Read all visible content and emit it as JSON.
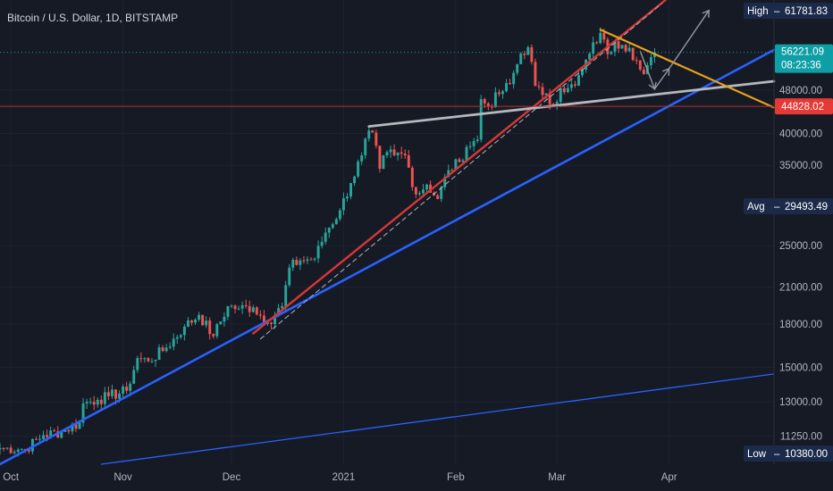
{
  "chart_data": {
    "type": "candlestick",
    "title": "Bitcoin / U.S. Dollar, 1D, BITSTAMP",
    "y_scale": "log",
    "ylim": [
      10000,
      70000
    ],
    "x_range": [
      "2020-09-28",
      "2021-04-30"
    ],
    "y_ticks": [
      11250,
      13000,
      15000,
      18000,
      21000,
      25000,
      35000,
      40000,
      48000
    ],
    "x_ticks": [
      {
        "date": "2020-10-01",
        "label": "Oct"
      },
      {
        "date": "2020-11-01",
        "label": "Nov"
      },
      {
        "date": "2020-12-01",
        "label": "Dec"
      },
      {
        "date": "2021-01-01",
        "label": "2021"
      },
      {
        "date": "2021-02-01",
        "label": "Feb"
      },
      {
        "date": "2021-03-01",
        "label": "Mar"
      },
      {
        "date": "2021-04-01",
        "label": "Apr"
      }
    ],
    "price_badges": {
      "last": {
        "value": "56221.09",
        "countdown": "08:23:36",
        "price": 56221.09
      },
      "high": {
        "label": "High",
        "value": "61781.83",
        "price": 61781.83
      },
      "avg": {
        "label": "Avg",
        "value": "29493.49",
        "price": 29493.49
      },
      "low": {
        "label": "Low",
        "value": "10380.00",
        "price": 10380
      },
      "line": {
        "value": "44828.02",
        "price": 44828.02
      }
    },
    "colors": {
      "up": "#26a69a",
      "down": "#ef5350",
      "background": "#161a25",
      "last_price": "#0e9ea5",
      "resistance_line": "#d93636",
      "blue_line": "#2962ff",
      "yellow_line": "#e5a21c",
      "gray_line": "#b6b8be"
    },
    "close_path": [
      [
        "2020-09-28",
        10700
      ],
      [
        "2020-10-05",
        10650
      ],
      [
        "2020-10-10",
        11300
      ],
      [
        "2020-10-15",
        11450
      ],
      [
        "2020-10-20",
        11900
      ],
      [
        "2020-10-21",
        12900
      ],
      [
        "2020-10-25",
        13100
      ],
      [
        "2020-10-28",
        13300
      ],
      [
        "2020-11-02",
        13600
      ],
      [
        "2020-11-05",
        15600
      ],
      [
        "2020-11-08",
        15400
      ],
      [
        "2020-11-13",
        16300
      ],
      [
        "2020-11-18",
        17800
      ],
      [
        "2020-11-22",
        18700
      ],
      [
        "2020-11-26",
        17100
      ],
      [
        "2020-11-30",
        19400
      ],
      [
        "2020-12-03",
        19200
      ],
      [
        "2020-12-07",
        19300
      ],
      [
        "2020-12-11",
        18100
      ],
      [
        "2020-12-15",
        19400
      ],
      [
        "2020-12-17",
        22800
      ],
      [
        "2020-12-20",
        23500
      ],
      [
        "2020-12-24",
        23700
      ],
      [
        "2020-12-27",
        26400
      ],
      [
        "2020-12-31",
        29000
      ],
      [
        "2021-01-03",
        32500
      ],
      [
        "2021-01-06",
        36500
      ],
      [
        "2021-01-08",
        40500
      ],
      [
        "2021-01-10",
        38000
      ],
      [
        "2021-01-11",
        34500
      ],
      [
        "2021-01-13",
        37000
      ],
      [
        "2021-01-15",
        36500
      ],
      [
        "2021-01-18",
        36500
      ],
      [
        "2021-01-21",
        31000
      ],
      [
        "2021-01-24",
        32300
      ],
      [
        "2021-01-27",
        30400
      ],
      [
        "2021-01-30",
        34300
      ],
      [
        "2021-02-02",
        35500
      ],
      [
        "2021-02-04",
        37800
      ],
      [
        "2021-02-07",
        39000
      ],
      [
        "2021-02-08",
        46200
      ],
      [
        "2021-02-10",
        44800
      ],
      [
        "2021-02-13",
        47200
      ],
      [
        "2021-02-16",
        49200
      ],
      [
        "2021-02-19",
        55900
      ],
      [
        "2021-02-21",
        57400
      ],
      [
        "2021-02-22",
        54000
      ],
      [
        "2021-02-23",
        48800
      ],
      [
        "2021-02-25",
        47000
      ],
      [
        "2021-02-28",
        45200
      ],
      [
        "2021-03-02",
        48400
      ],
      [
        "2021-03-04",
        48400
      ],
      [
        "2021-03-06",
        48900
      ],
      [
        "2021-03-08",
        52300
      ],
      [
        "2021-03-10",
        55900
      ],
      [
        "2021-03-13",
        61000
      ],
      [
        "2021-03-15",
        55800
      ],
      [
        "2021-03-17",
        58900
      ],
      [
        "2021-03-19",
        58000
      ],
      [
        "2021-03-21",
        57300
      ],
      [
        "2021-03-23",
        54300
      ],
      [
        "2021-03-24",
        52300
      ],
      [
        "2021-03-25",
        51300
      ],
      [
        "2021-03-27",
        55100
      ],
      [
        "2021-03-28",
        56221
      ]
    ],
    "drawings": [
      {
        "name": "long-term-blue-trendline",
        "color": "#2962ff",
        "width": 1.3,
        "dash": false,
        "points": [
          [
            "2020-10-26",
            10000
          ],
          [
            "2021-04-30",
            14600
          ]
        ]
      },
      {
        "name": "main-blue-trendline",
        "color": "#2962ff",
        "width": 2.6,
        "dash": false,
        "points": [
          [
            "2020-09-28",
            10000
          ],
          [
            "2021-04-30",
            56800
          ]
        ]
      },
      {
        "name": "red-trendline",
        "color": "#d93636",
        "width": 2.4,
        "dash": false,
        "points": [
          [
            "2020-12-07",
            17300
          ],
          [
            "2021-03-31",
            70000
          ]
        ]
      },
      {
        "name": "dashed-channel-line",
        "color": "#b2b5be",
        "width": 1,
        "dash": true,
        "points": [
          [
            "2020-12-09",
            16900
          ],
          [
            "2021-03-30",
            69000
          ]
        ]
      },
      {
        "name": "gray-neckline",
        "color": "#b6b8be",
        "width": 2.8,
        "dash": false,
        "points": [
          [
            "2021-01-08",
            41200
          ],
          [
            "2021-04-30",
            49800
          ]
        ]
      },
      {
        "name": "yellow-descending-line",
        "color": "#e5a21c",
        "width": 2.2,
        "dash": false,
        "points": [
          [
            "2021-03-13",
            61800
          ],
          [
            "2021-04-30",
            44600
          ]
        ]
      }
    ],
    "projection_arrows": [
      {
        "color": "#9598a1",
        "points": [
          [
            "2021-03-24",
            56500
          ],
          [
            "2021-03-28",
            48200
          ],
          [
            "2021-04-01",
            52500
          ],
          [
            "2021-04-12",
            67000
          ]
        ]
      }
    ]
  }
}
